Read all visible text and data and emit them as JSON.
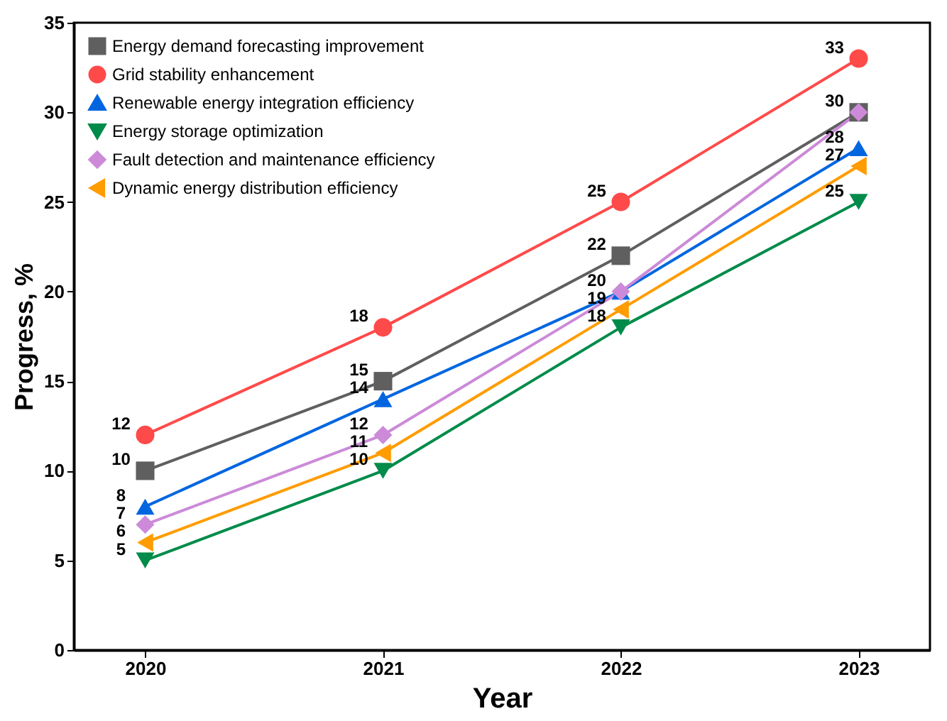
{
  "chart_data": {
    "type": "line",
    "xlabel": "Year",
    "ylabel": "Progress, %",
    "categories": [
      "2020",
      "2021",
      "2022",
      "2023"
    ],
    "series": [
      {
        "name": "Energy demand forecasting improvement",
        "color": "#5f5f5f",
        "marker": "square",
        "values": [
          10,
          15,
          22,
          30
        ],
        "value_labels": [
          "10",
          "15",
          "22",
          "30"
        ]
      },
      {
        "name": "Grid stability enhancement",
        "color": "#ff4a4a",
        "marker": "circle",
        "values": [
          12,
          18,
          25,
          33
        ],
        "value_labels": [
          "12",
          "18",
          "25",
          "33"
        ]
      },
      {
        "name": "Renewable energy integration efficiency",
        "color": "#0066e0",
        "marker": "triangle",
        "values": [
          8,
          14,
          20,
          28
        ],
        "value_labels": [
          "8",
          "14",
          "20",
          "28"
        ]
      },
      {
        "name": "Energy storage optimization",
        "color": "#008b4a",
        "marker": "triangle-down",
        "values": [
          5,
          10,
          18,
          25
        ],
        "value_labels": [
          "5",
          "10",
          "18",
          "25"
        ]
      },
      {
        "name": "Fault detection and maintenance efficiency",
        "color": "#cc8ad8",
        "marker": "diamond",
        "values": [
          7,
          12,
          20,
          30
        ],
        "value_labels": [
          "7",
          "12",
          null,
          null
        ]
      },
      {
        "name": "Dynamic energy distribution efficiency",
        "color": "#ff9c00",
        "marker": "triangle-left",
        "values": [
          6,
          11,
          19,
          27
        ],
        "value_labels": [
          "6",
          "11",
          "19",
          "27"
        ]
      }
    ],
    "ylim": [
      0,
      35
    ],
    "yticks": [
      0,
      5,
      10,
      15,
      20,
      25,
      30,
      35
    ],
    "grid": false,
    "legend": "top left",
    "line_style": "solid"
  }
}
